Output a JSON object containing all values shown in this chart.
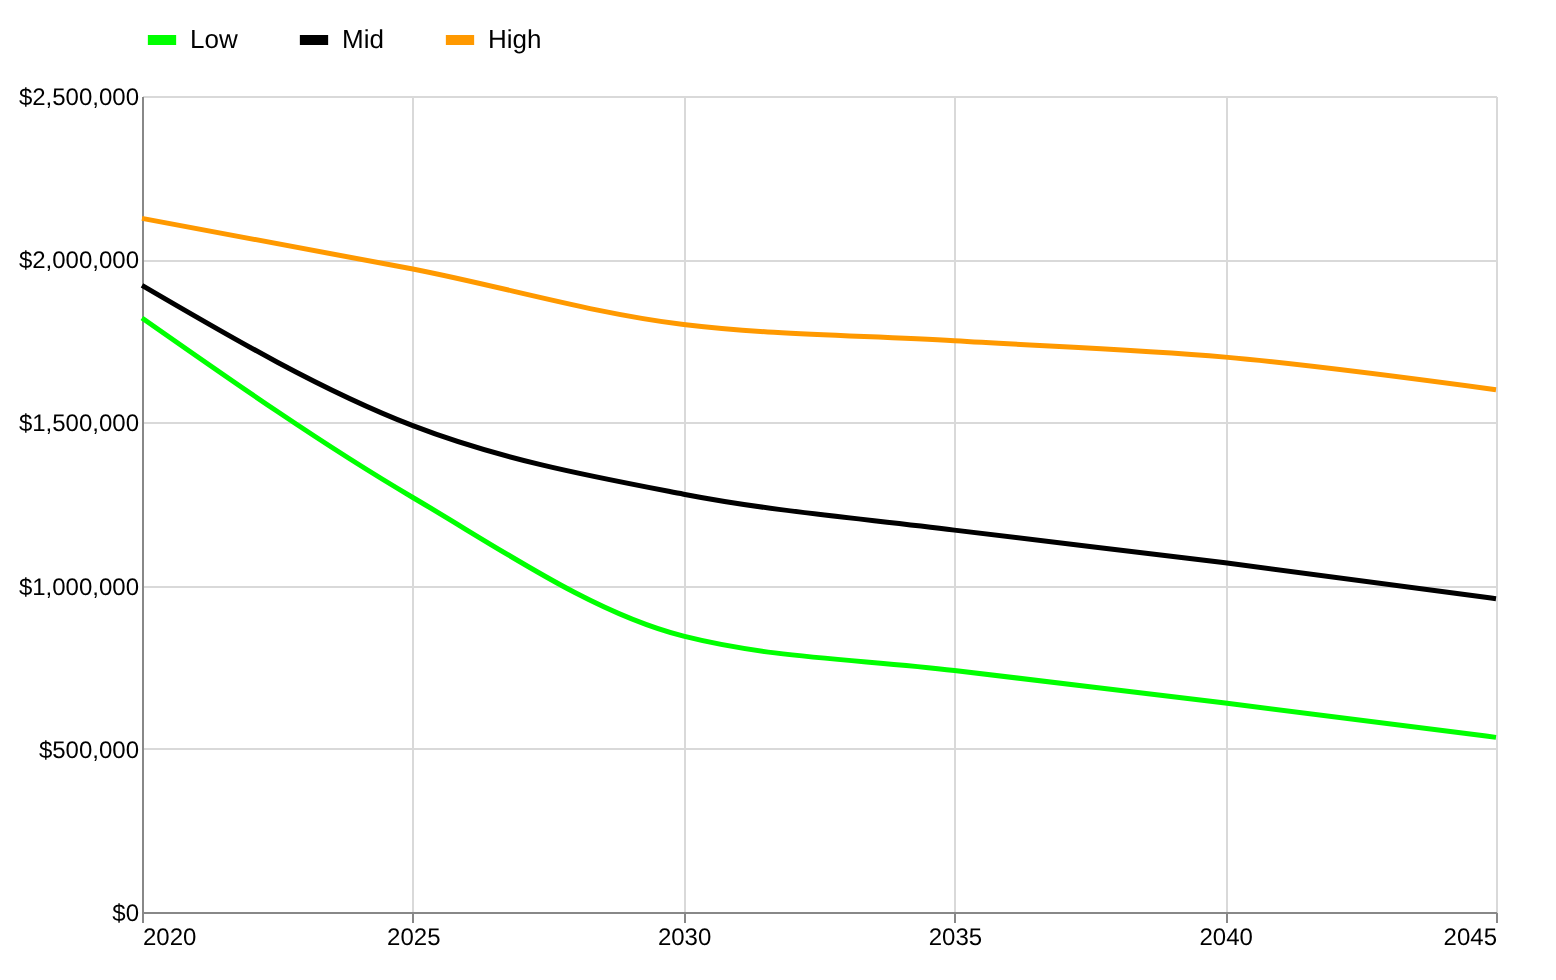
{
  "chart_data": {
    "type": "line",
    "x": [
      2020,
      2025,
      2030,
      2035,
      2040,
      2045
    ],
    "series": [
      {
        "name": "Low",
        "color": "#00ff00",
        "values": [
          1820000,
          1270000,
          845000,
          740000,
          640000,
          535000
        ]
      },
      {
        "name": "Mid",
        "color": "#000000",
        "values": [
          1920000,
          1490000,
          1280000,
          1170000,
          1070000,
          960000
        ]
      },
      {
        "name": "High",
        "color": "#ff9900",
        "values": [
          2125000,
          1970000,
          1800000,
          1750000,
          1700000,
          1600000
        ]
      }
    ],
    "xlim": [
      2020,
      2045
    ],
    "xticks": [
      2020,
      2025,
      2030,
      2035,
      2040,
      2045
    ],
    "ylim": [
      0,
      2500000
    ],
    "yticks": [
      {
        "value": 0,
        "label": "$0"
      },
      {
        "value": 500000,
        "label": "$500,000"
      },
      {
        "value": 1000000,
        "label": "$1,000,000"
      },
      {
        "value": 1500000,
        "label": "$1,500,000"
      },
      {
        "value": 2000000,
        "label": "$2,000,000"
      },
      {
        "value": 2500000,
        "label": "$2,500,000"
      }
    ],
    "grid": true,
    "legend": "top",
    "line_style": "solid",
    "marker": "none"
  }
}
